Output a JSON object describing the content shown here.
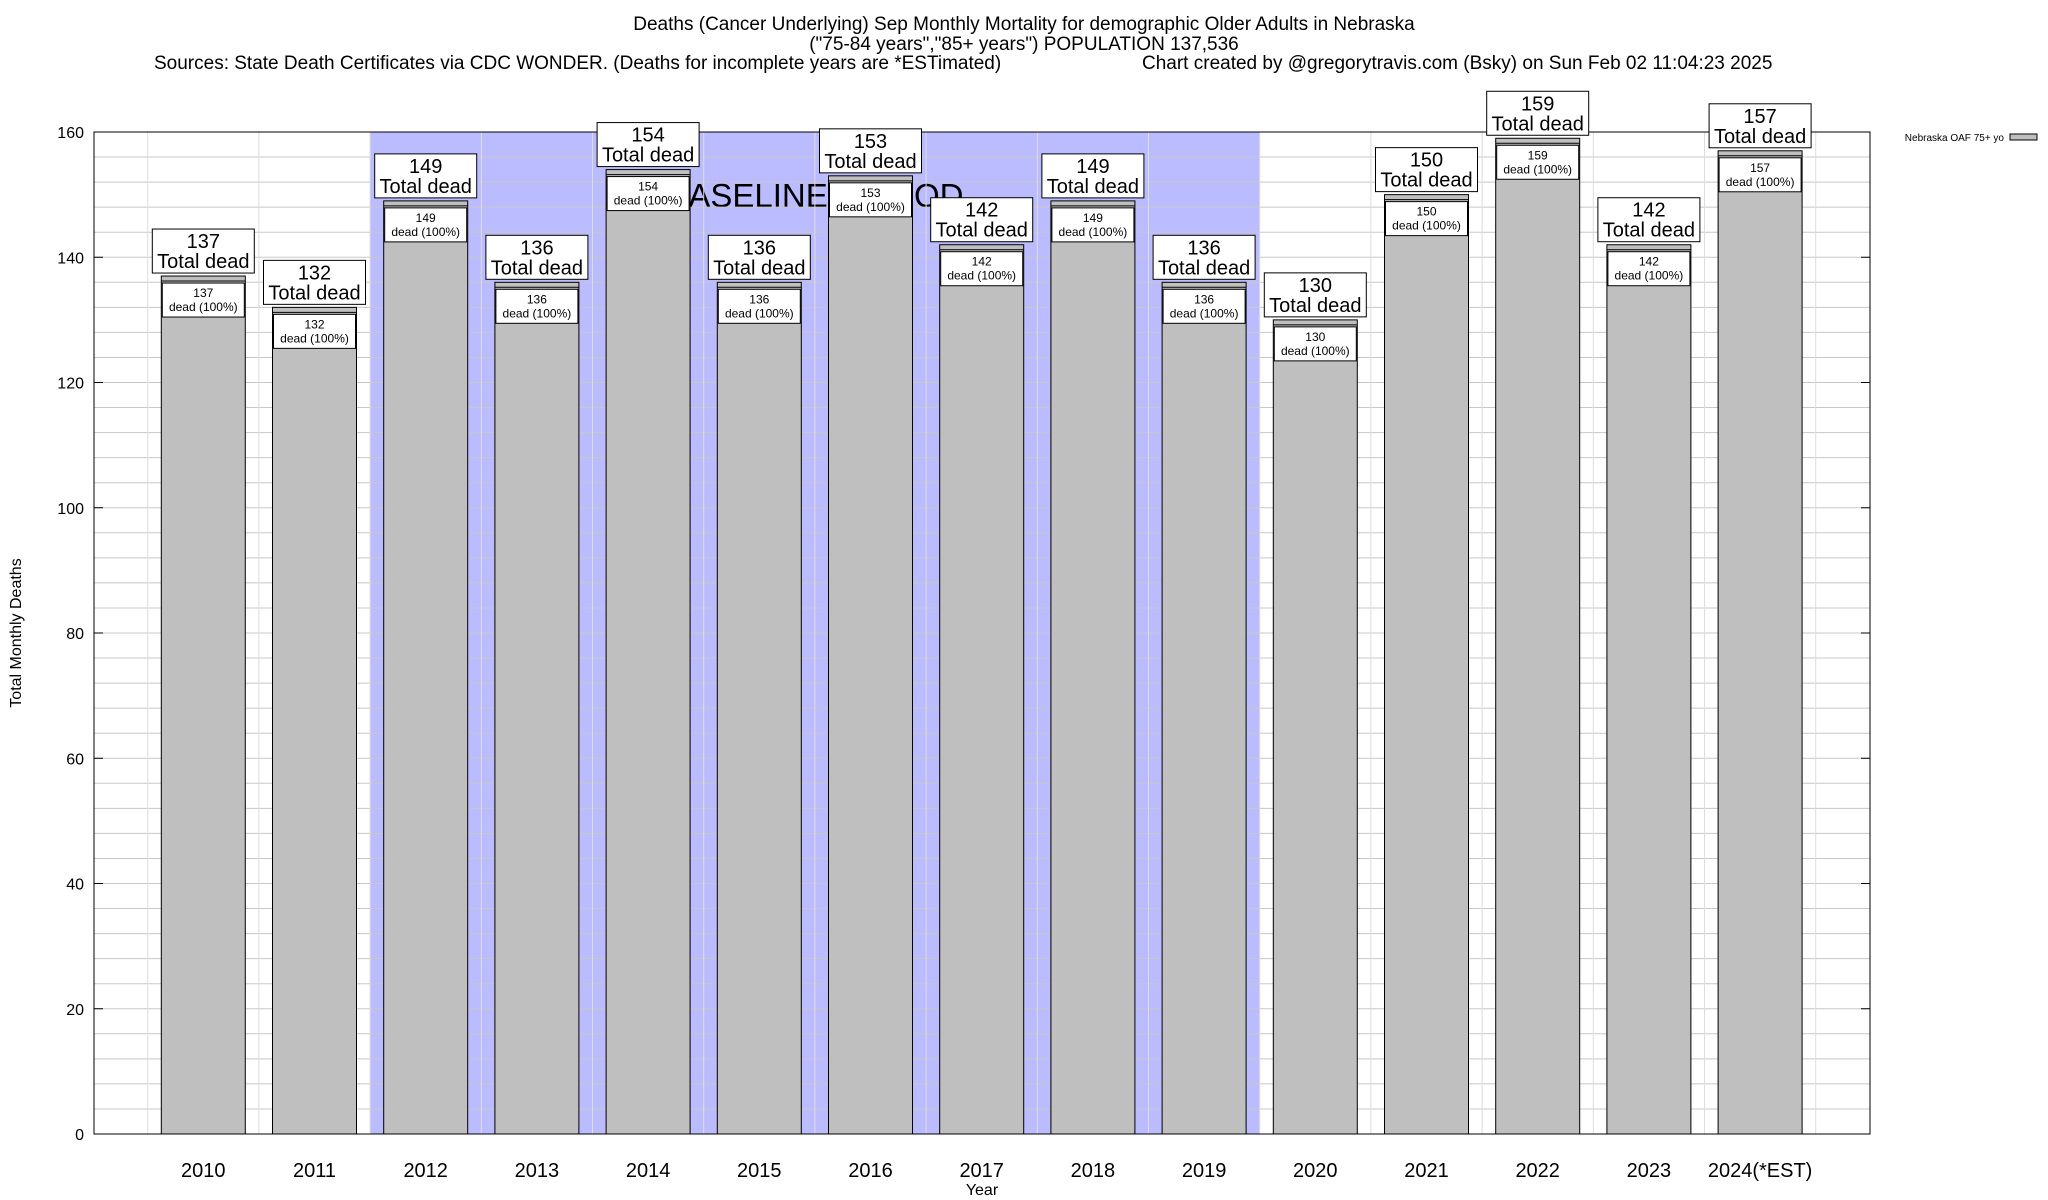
{
  "header": {
    "title_line1": "Deaths (Cancer Underlying) Sep Monthly Mortality for demographic Older Adults in Nebraska",
    "title_line2": "(\"75-84 years\",\"85+ years\") POPULATION 137,536",
    "sources": "Sources: State Death Certificates via CDC WONDER. (Deaths for incomplete years are *ESTimated)",
    "credit": "Chart created by @gregorytravis.com (Bsky) on Sun Feb 02 11:04:23 2025"
  },
  "chart_data": {
    "type": "bar",
    "categories": [
      "2010",
      "2011",
      "2012",
      "2013",
      "2014",
      "2015",
      "2016",
      "2017",
      "2018",
      "2019",
      "2020",
      "2021",
      "2022",
      "2023",
      "2024(*EST)"
    ],
    "series": [
      {
        "name": "Nebraska OAF 75+ yo",
        "values": [
          137,
          132,
          149,
          136,
          154,
          136,
          153,
          142,
          149,
          136,
          130,
          150,
          159,
          142,
          157
        ]
      }
    ],
    "total_label_suffix": "Total dead",
    "inner_label_suffix": "dead (100%)",
    "xlabel": "Year",
    "ylabel": "Total Monthly Deaths",
    "ylim": [
      0,
      160
    ],
    "yticks": [
      0,
      20,
      40,
      60,
      80,
      100,
      120,
      140,
      160
    ],
    "minor_grid_step": 4,
    "baseline_period": {
      "label": "BASELINE PERIOD",
      "from_category": "2012",
      "to_category": "2019",
      "color": "#bbbbff"
    },
    "bar_color": "#bfbfbf",
    "legend_position": "top-right",
    "grid": true
  }
}
